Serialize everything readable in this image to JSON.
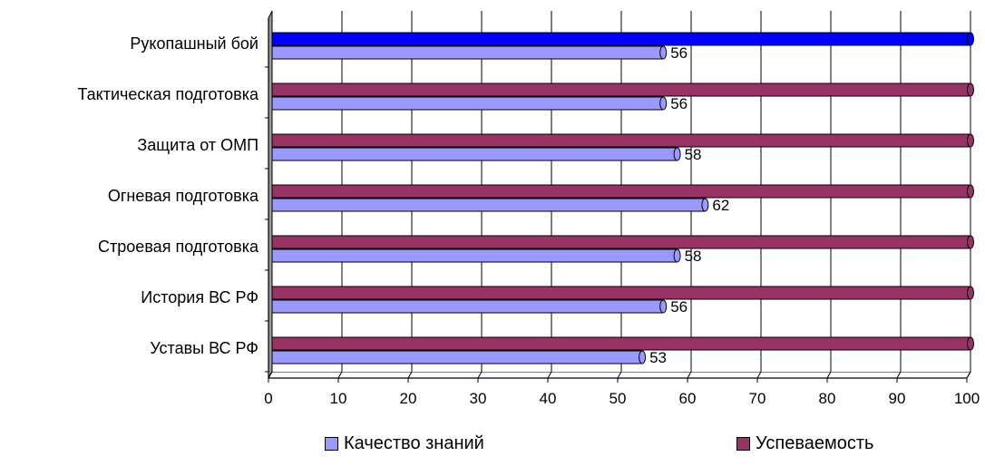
{
  "chart_data": {
    "type": "bar",
    "orientation": "horizontal",
    "categories": [
      "Рукопашный бой",
      "Тактическая подготовка",
      "Защита от ОМП",
      "Огневая подготовка",
      "Строевая подготовка",
      "История ВС РФ",
      "Уставы ВС РФ"
    ],
    "series": [
      {
        "name": "Успеваемость",
        "values": [
          100,
          100,
          100,
          100,
          100,
          100,
          100
        ],
        "color": "#993366",
        "highlight": {
          "index": 0,
          "color": "#0000ff"
        }
      },
      {
        "name": "Качество знаний",
        "values": [
          56,
          56,
          58,
          62,
          58,
          56,
          53
        ],
        "color": "#9999ff",
        "data_labels": [
          "56",
          "56",
          "58",
          "62",
          "58",
          "56",
          "53"
        ]
      }
    ],
    "xlim": [
      0,
      100
    ],
    "xticks": [
      "0",
      "10",
      "20",
      "30",
      "40",
      "50",
      "60",
      "70",
      "80",
      "90",
      "100"
    ],
    "grid": true,
    "legend_position": "bottom"
  },
  "legend": {
    "items": [
      {
        "label": "Качество знаний",
        "color": "#9999ff"
      },
      {
        "label": "Успеваемость",
        "color": "#993366"
      }
    ]
  }
}
